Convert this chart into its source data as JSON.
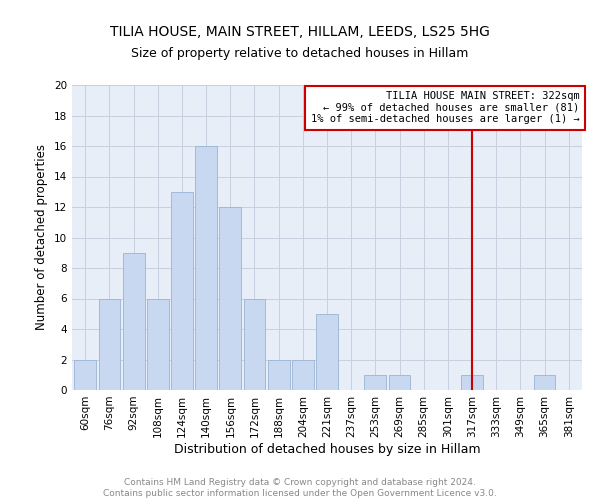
{
  "title": "TILIA HOUSE, MAIN STREET, HILLAM, LEEDS, LS25 5HG",
  "subtitle": "Size of property relative to detached houses in Hillam",
  "xlabel": "Distribution of detached houses by size in Hillam",
  "ylabel": "Number of detached properties",
  "categories": [
    "60sqm",
    "76sqm",
    "92sqm",
    "108sqm",
    "124sqm",
    "140sqm",
    "156sqm",
    "172sqm",
    "188sqm",
    "204sqm",
    "221sqm",
    "237sqm",
    "253sqm",
    "269sqm",
    "285sqm",
    "301sqm",
    "317sqm",
    "333sqm",
    "349sqm",
    "365sqm",
    "381sqm"
  ],
  "values": [
    2,
    6,
    9,
    6,
    13,
    16,
    12,
    6,
    2,
    2,
    5,
    0,
    1,
    1,
    0,
    0,
    1,
    0,
    0,
    1,
    0
  ],
  "bar_color": "#c8d8f0",
  "bar_edge_color": "#9ab4d4",
  "vline_x_index": 16,
  "vline_color": "#cc0000",
  "annotation_title": "TILIA HOUSE MAIN STREET: 322sqm",
  "annotation_line1": "← 99% of detached houses are smaller (81)",
  "annotation_line2": "1% of semi-detached houses are larger (1) →",
  "annotation_box_color": "#cc0000",
  "ylim": [
    0,
    20
  ],
  "yticks": [
    0,
    2,
    4,
    6,
    8,
    10,
    12,
    14,
    16,
    18,
    20
  ],
  "grid_color": "#c8d0e0",
  "background_color": "#e8eef8",
  "footnote": "Contains HM Land Registry data © Crown copyright and database right 2024.\nContains public sector information licensed under the Open Government Licence v3.0.",
  "title_fontsize": 10,
  "subtitle_fontsize": 9,
  "xlabel_fontsize": 9,
  "ylabel_fontsize": 8.5,
  "tick_fontsize": 7.5,
  "annotation_fontsize": 7.5,
  "footnote_fontsize": 6.5
}
